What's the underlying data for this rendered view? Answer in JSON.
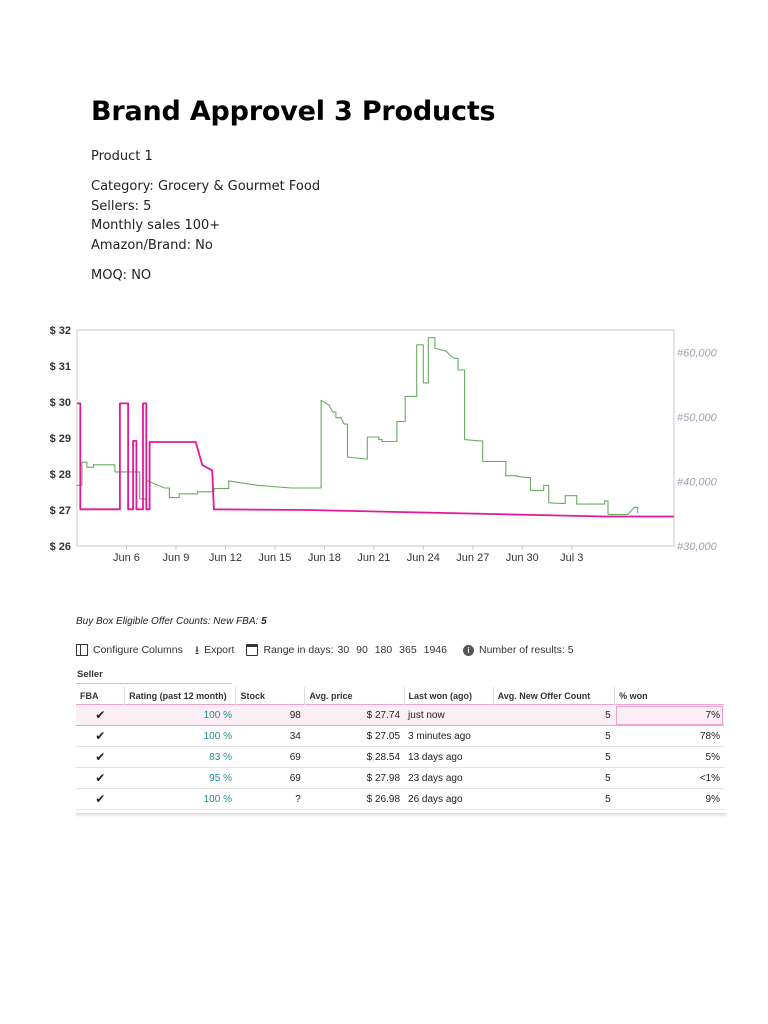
{
  "document": {
    "title": "Brand Approvel 3 Products",
    "product_label": "Product 1",
    "details": [
      "Category: Grocery & Gourmet Food",
      "Sellers: 5",
      "Monthly sales 100+",
      "Amazon/Brand: No"
    ],
    "moq": "MOQ: NO"
  },
  "chart_data": {
    "type": "line",
    "title": "",
    "xlabel": "",
    "ylabel": "",
    "x_tick_labels": [
      "Jun 6",
      "Jun 9",
      "Jun 12",
      "Jun 15",
      "Jun 18",
      "Jun 21",
      "Jun 24",
      "Jun 27",
      "Jun 30",
      "Jul 3"
    ],
    "y_left_ticks": [
      "$ 32",
      "$ 31",
      "$ 30",
      "$ 29",
      "$ 28",
      "$ 27",
      "$ 26"
    ],
    "y_left_range": [
      26,
      32
    ],
    "y_right_ticks": [
      "#60,000",
      "#50,000",
      "#40,000",
      "#30,000"
    ],
    "y_right_range": [
      30000,
      63500
    ],
    "x_range_days": [
      3,
      39.2
    ],
    "grid": false,
    "colors": {
      "price": "#e8179a",
      "rank": "#6aaa64"
    },
    "series": [
      {
        "axis": "left",
        "points": [
          [
            3,
            29.96
          ],
          [
            3.2,
            29.96
          ],
          [
            3.2,
            27.02
          ],
          [
            5.6,
            27.02
          ],
          [
            5.6,
            29.96
          ],
          [
            6.1,
            29.96
          ],
          [
            6.1,
            27.02
          ],
          [
            6.4,
            27.02
          ],
          [
            6.4,
            28.92
          ],
          [
            6.6,
            28.92
          ],
          [
            6.6,
            27.02
          ],
          [
            7.0,
            27.02
          ],
          [
            7.0,
            29.96
          ],
          [
            7.2,
            29.96
          ],
          [
            7.2,
            27.02
          ],
          [
            7.4,
            27.02
          ],
          [
            7.4,
            28.89
          ],
          [
            10.2,
            28.89
          ],
          [
            10.6,
            28.25
          ],
          [
            11.2,
            28.1
          ],
          [
            11.3,
            27.02
          ],
          [
            17,
            27.0
          ],
          [
            25,
            26.92
          ],
          [
            35,
            26.82
          ],
          [
            39.2,
            26.82
          ]
        ]
      },
      {
        "axis": "right",
        "points": [
          [
            3,
            39.4
          ],
          [
            3.3,
            39.4
          ],
          [
            3.3,
            43.0
          ],
          [
            3.6,
            43.0
          ],
          [
            3.6,
            42.2
          ],
          [
            4.0,
            42.2
          ],
          [
            4.0,
            42.6
          ],
          [
            5.3,
            42.6
          ],
          [
            5.3,
            41.5
          ],
          [
            6.8,
            41.5
          ],
          [
            6.8,
            37.3
          ],
          [
            7.2,
            37.3
          ],
          [
            7.2,
            40.2
          ],
          [
            8.3,
            39.0
          ],
          [
            8.6,
            39.0
          ],
          [
            8.6,
            37.5
          ],
          [
            9.2,
            37.5
          ],
          [
            9.2,
            38.1
          ],
          [
            10.3,
            38.1
          ],
          [
            10.3,
            38.4
          ],
          [
            11.3,
            38.4
          ],
          [
            11.3,
            38.9
          ],
          [
            12.2,
            38.9
          ],
          [
            12.2,
            40.1
          ],
          [
            14,
            39.4
          ],
          [
            16,
            39.0
          ],
          [
            17.8,
            39.0
          ],
          [
            17.8,
            52.6
          ],
          [
            18.3,
            51.8
          ],
          [
            18.5,
            50.8
          ],
          [
            18.7,
            50.8
          ],
          [
            18.7,
            49.9
          ],
          [
            19.0,
            49.9
          ],
          [
            19.2,
            48.9
          ],
          [
            19.4,
            48.9
          ],
          [
            19.4,
            43.8
          ],
          [
            20.5,
            43.5
          ],
          [
            20.6,
            43.5
          ],
          [
            20.6,
            46.9
          ],
          [
            21.3,
            46.9
          ],
          [
            21.3,
            46.5
          ],
          [
            21.5,
            46.5
          ],
          [
            21.5,
            46.2
          ],
          [
            22.4,
            46.2
          ],
          [
            22.4,
            49.3
          ],
          [
            22.9,
            49.3
          ],
          [
            22.9,
            53.2
          ],
          [
            23.6,
            53.2
          ],
          [
            23.6,
            61.2
          ],
          [
            24.0,
            61.2
          ],
          [
            24.0,
            55.3
          ],
          [
            24.3,
            55.3
          ],
          [
            24.3,
            62.3
          ],
          [
            24.7,
            62.3
          ],
          [
            24.7,
            60.7
          ],
          [
            25.4,
            60.2
          ],
          [
            25.6,
            59.6
          ],
          [
            25.9,
            59.1
          ],
          [
            26.1,
            59.1
          ],
          [
            26.1,
            57.3
          ],
          [
            26.5,
            57.3
          ],
          [
            26.5,
            46.5
          ],
          [
            27.4,
            46.3
          ],
          [
            27.6,
            46.3
          ],
          [
            27.6,
            43.1
          ],
          [
            29.0,
            43.1
          ],
          [
            29.0,
            40.9
          ],
          [
            29.7,
            40.9
          ],
          [
            29.7,
            40.8
          ],
          [
            30.4,
            40.6
          ],
          [
            30.5,
            40.6
          ],
          [
            30.5,
            38.6
          ],
          [
            31.3,
            38.6
          ],
          [
            31.3,
            39.4
          ],
          [
            31.6,
            39.4
          ],
          [
            31.6,
            36.7
          ],
          [
            32.4,
            36.6
          ],
          [
            32.6,
            36.6
          ],
          [
            32.6,
            37.8
          ],
          [
            33.3,
            37.8
          ],
          [
            33.3,
            36.5
          ],
          [
            35.0,
            36.5
          ],
          [
            35.0,
            37.0
          ],
          [
            35.2,
            37.0
          ],
          [
            35.2,
            34.9
          ],
          [
            36.4,
            34.9
          ],
          [
            36.8,
            36.0
          ],
          [
            37.0,
            36.0
          ],
          [
            37.0,
            35.1
          ]
        ]
      }
    ]
  },
  "offers": {
    "title_prefix": "Buy Box Eligible Offer Counts: New FBA:",
    "title_count": "5",
    "toolbar": {
      "configure_label": "Configure Columns",
      "export_label": "Export",
      "range_label": "Range in days:",
      "range_options": [
        "30",
        "90",
        "180",
        "365",
        "1946"
      ],
      "results_label": "Number of results:",
      "results_count": "5"
    },
    "group_header": "Seller",
    "columns": [
      "FBA",
      "Rating (past 12 month)",
      "Stock",
      "Avg. price",
      "Last won (ago)",
      "Avg. New Offer Count",
      "% won"
    ],
    "rows": [
      {
        "fba": "✔",
        "rating": "100 %",
        "stock": "98",
        "price": "$ 27.74",
        "last_won": "just now",
        "avg_new": "5",
        "won": "7%"
      },
      {
        "fba": "✔",
        "rating": "100 %",
        "stock": "34",
        "price": "$ 27.05",
        "last_won": "3 minutes ago",
        "avg_new": "5",
        "won": "78%"
      },
      {
        "fba": "✔",
        "rating": "83 %",
        "stock": "69",
        "price": "$ 28.54",
        "last_won": "13 days ago",
        "avg_new": "5",
        "won": "5%"
      },
      {
        "fba": "✔",
        "rating": "95 %",
        "stock": "69",
        "price": "$ 27.98",
        "last_won": "23 days ago",
        "avg_new": "5",
        "won": "<1%"
      },
      {
        "fba": "✔",
        "rating": "100 %",
        "stock": "?",
        "price": "$ 26.98",
        "last_won": "26 days ago",
        "avg_new": "5",
        "won": "9%"
      }
    ]
  }
}
